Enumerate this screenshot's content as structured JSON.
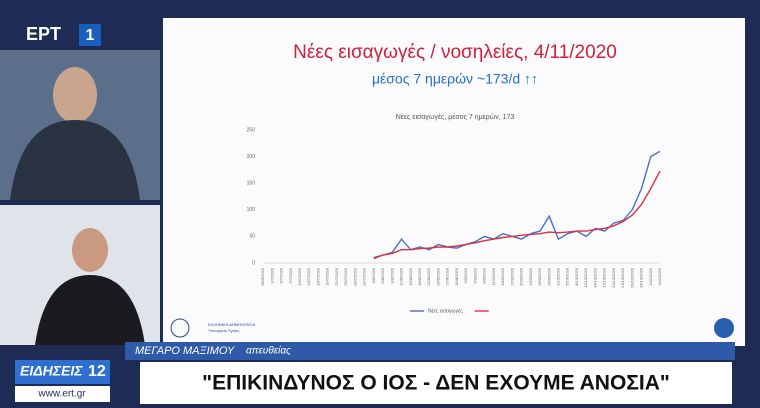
{
  "logo": {
    "brand": "ΕΡΤ",
    "channel": "1"
  },
  "slide": {
    "ministry": "ΕΛΛΗΝΙΚΗ ΔΗΜΟΚΡΑΤΙΑ",
    "ministry_sub": "Υπουργείο Υγείας"
  },
  "ticker": {
    "location": "ΜΕΓΑΡΟ ΜΑΞΙΜΟΥ",
    "live": "απευθείας",
    "news": "ΕΙΔΗΣΕΙΣ",
    "hour": "12",
    "site": "www.ert.gr",
    "headline": "\"ΕΠΙΚΙΝΔΥΝΟΣ Ο ΙΟΣ - ΔΕΝ ΕΧΟΥΜΕ ΑΝΟΣΙΑ\""
  },
  "chart_data": {
    "type": "line",
    "title": "Νέες εισαγωγές / νοσηλείες, 4/11/2020",
    "subtitle": "μέσος 7 ημερών ~173/d ↑↑",
    "plot_title": "Νέες εισαγωγές, μέσος 7 ημερών, 173",
    "categories": [
      "28/6/2020",
      "1/7/2020",
      "4/7/2020",
      "7/7/2020",
      "10/7/2020",
      "13/7/2020",
      "16/7/2020",
      "19/7/2020",
      "22/7/2020",
      "25/7/2020",
      "28/7/2020",
      "31/7/2020",
      "3/8/2020",
      "6/8/2020",
      "9/8/2020",
      "12/8/2020",
      "15/8/2020",
      "18/8/2020",
      "21/8/2020",
      "24/8/2020",
      "27/8/2020",
      "30/8/2020",
      "2/9/2020",
      "5/9/2020",
      "8/9/2020",
      "11/9/2020",
      "14/9/2020",
      "17/9/2020",
      "20/9/2020",
      "23/9/2020",
      "26/9/2020",
      "29/9/2020",
      "2/10/2020",
      "5/10/2020",
      "8/10/2020",
      "11/10/2020",
      "14/10/2020",
      "17/10/2020",
      "20/10/2020",
      "23/10/2020",
      "26/10/2020",
      "29/10/2020",
      "1/11/2020",
      "4/11/2020"
    ],
    "series": [
      {
        "name": "Νέες εισαγωγές",
        "color": "#4472c4",
        "values": [
          null,
          null,
          null,
          null,
          null,
          null,
          null,
          null,
          null,
          null,
          null,
          null,
          8,
          15,
          20,
          45,
          25,
          30,
          25,
          35,
          30,
          28,
          35,
          40,
          50,
          45,
          55,
          50,
          45,
          55,
          60,
          88,
          45,
          55,
          60,
          50,
          65,
          60,
          75,
          80,
          100,
          140,
          200,
          210
        ]
      },
      {
        "color": "#e0303a",
        "values": [
          null,
          null,
          null,
          null,
          null,
          null,
          null,
          null,
          null,
          null,
          null,
          null,
          10,
          15,
          18,
          25,
          25,
          27,
          28,
          30,
          30,
          32,
          35,
          38,
          42,
          45,
          48,
          50,
          52,
          54,
          55,
          58,
          57,
          58,
          60,
          60,
          63,
          65,
          70,
          78,
          90,
          110,
          140,
          173
        ]
      }
    ],
    "ylim": [
      0,
      250
    ],
    "yticks": [
      0,
      50,
      100,
      150,
      200,
      250
    ],
    "grid": false
  }
}
